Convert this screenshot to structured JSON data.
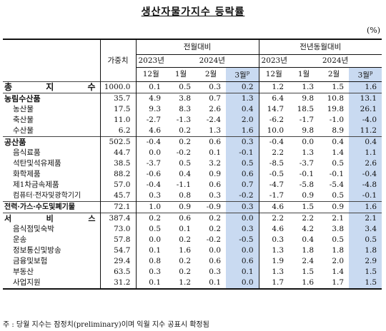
{
  "title": "생산자물가지수 등락률",
  "unit": "(%)",
  "header": {
    "weight": "가중치",
    "group_mom": "전월대비",
    "group_yoy": "전년동월대비",
    "year_2023": "2023년",
    "year_2024": "2024년",
    "months": [
      "12월",
      "1월",
      "2월",
      "3월"
    ],
    "prelim_mark": "p"
  },
  "rows": [
    {
      "label": "총 지 수",
      "level": 0,
      "weight": "1000.0",
      "mom": [
        "0.1",
        "0.5",
        "0.3",
        "0.2"
      ],
      "yoy": [
        "1.2",
        "1.3",
        "1.5",
        "1.6"
      ]
    },
    {
      "label": "농림수산품",
      "level": 1,
      "weight": "35.7",
      "mom": [
        "4.9",
        "3.8",
        "0.7",
        "1.3"
      ],
      "yoy": [
        "6.4",
        "9.8",
        "10.8",
        "13.1"
      ]
    },
    {
      "label": "농산물",
      "level": 2,
      "weight": "17.5",
      "mom": [
        "9.3",
        "8.3",
        "2.6",
        "0.4"
      ],
      "yoy": [
        "14.7",
        "18.5",
        "19.8",
        "26.1"
      ]
    },
    {
      "label": "축산물",
      "level": 2,
      "weight": "11.0",
      "mom": [
        "-2.7",
        "-1.3",
        "-2.4",
        "2.0"
      ],
      "yoy": [
        "-6.2",
        "-1.7",
        "-1.0",
        "-4.0"
      ]
    },
    {
      "label": "수산물",
      "level": 2,
      "weight": "6.2",
      "mom": [
        "4.6",
        "0.2",
        "1.3",
        "1.6"
      ],
      "yoy": [
        "10.0",
        "9.8",
        "8.9",
        "11.2"
      ]
    },
    {
      "label": "공산품",
      "level": 1,
      "weight": "502.5",
      "mom": [
        "-0.4",
        "0.2",
        "0.6",
        "0.3"
      ],
      "yoy": [
        "-0.4",
        "0.0",
        "0.4",
        "0.4"
      ]
    },
    {
      "label": "음식료품",
      "level": 2,
      "weight": "44.7",
      "mom": [
        "0.0",
        "-0.2",
        "0.1",
        "-0.1"
      ],
      "yoy": [
        "2.2",
        "1.3",
        "1.4",
        "1.1"
      ]
    },
    {
      "label": "석탄및석유제품",
      "level": 2,
      "weight": "38.5",
      "mom": [
        "-3.7",
        "0.5",
        "3.2",
        "0.5"
      ],
      "yoy": [
        "-8.5",
        "-3.7",
        "0.5",
        "2.6"
      ]
    },
    {
      "label": "화학제품",
      "level": 2,
      "weight": "88.2",
      "mom": [
        "-0.6",
        "0.4",
        "0.9",
        "0.6"
      ],
      "yoy": [
        "-0.5",
        "-0.1",
        "-0.1",
        "-0.4"
      ]
    },
    {
      "label": "제1차금속제품",
      "level": 2,
      "weight": "57.0",
      "mom": [
        "-0.4",
        "-1.1",
        "0.6",
        "0.7"
      ],
      "yoy": [
        "-4.7",
        "-5.8",
        "-5.4",
        "-4.8"
      ]
    },
    {
      "label": "컴퓨터·전자및광학기기",
      "level": 2,
      "weight": "45.7",
      "mom": [
        "0.3",
        "0.8",
        "0.3",
        "-0.2"
      ],
      "yoy": [
        "-1.7",
        "0.9",
        "0.5",
        "-0.1"
      ],
      "nojustify": true
    },
    {
      "label": "전력·가스·수도및폐기물",
      "level": 1,
      "weight": "72.1",
      "mom": [
        "1.0",
        "0.9",
        "-0.9",
        "0.3"
      ],
      "yoy": [
        "4.6",
        "1.5",
        "0.9",
        "1.6"
      ],
      "nojustify": true
    },
    {
      "label": "서 비 스",
      "level": 1,
      "weight": "387.4",
      "mom": [
        "0.2",
        "0.6",
        "0.2",
        "0.0"
      ],
      "yoy": [
        "2.2",
        "2.2",
        "2.1",
        "2.1"
      ]
    },
    {
      "label": "음식점및숙박",
      "level": 2,
      "weight": "73.0",
      "mom": [
        "0.5",
        "0.1",
        "0.2",
        "0.3"
      ],
      "yoy": [
        "4.6",
        "4.2",
        "3.8",
        "3.4"
      ]
    },
    {
      "label": "운송",
      "level": 2,
      "weight": "57.8",
      "mom": [
        "0.0",
        "0.2",
        "-0.2",
        "-0.5"
      ],
      "yoy": [
        "0.3",
        "0.4",
        "0.5",
        "0.5"
      ]
    },
    {
      "label": "정보통신및방송",
      "level": 2,
      "weight": "54.7",
      "mom": [
        "0.1",
        "1.6",
        "0.0",
        "0.0"
      ],
      "yoy": [
        "1.3",
        "1.8",
        "1.8",
        "1.8"
      ]
    },
    {
      "label": "금융및보험",
      "level": 2,
      "weight": "29.4",
      "mom": [
        "0.8",
        "0.2",
        "0.6",
        "0.6"
      ],
      "yoy": [
        "1.9",
        "2.4",
        "2.0",
        "2.9"
      ]
    },
    {
      "label": "부동산",
      "level": 2,
      "weight": "63.5",
      "mom": [
        "0.3",
        "0.2",
        "0.3",
        "0.1"
      ],
      "yoy": [
        "1.3",
        "1.5",
        "1.4",
        "1.5"
      ]
    },
    {
      "label": "사업지원",
      "level": 2,
      "weight": "31.2",
      "mom": [
        "0.1",
        "1.2",
        "0.1",
        "0.0"
      ],
      "yoy": [
        "1.7",
        "1.6",
        "1.7",
        "1.5"
      ]
    }
  ],
  "footnote": "주 : 당월 지수는 잠정치(preliminary)이며 익월 지수 공표시 확정됨",
  "highlight_color": "#c9daf1"
}
